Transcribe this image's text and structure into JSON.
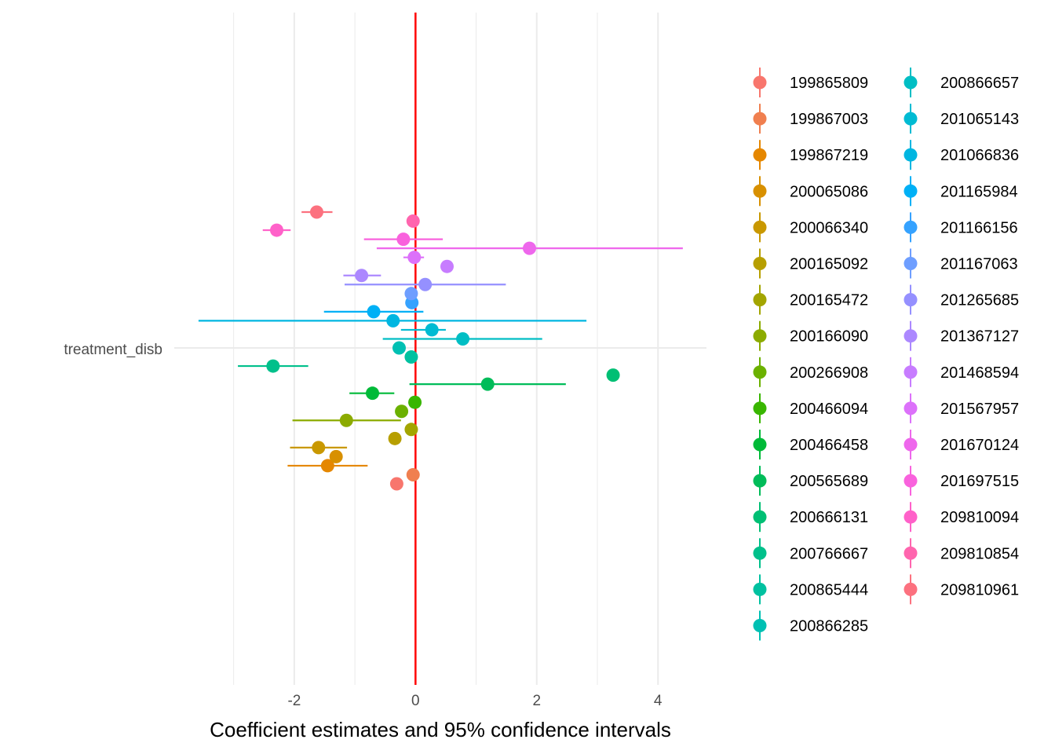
{
  "chart_data": {
    "type": "scatter",
    "subtype": "coefficient-plot-with-error-bars",
    "title": "",
    "xlabel": "Coefficient estimates and 95% confidence intervals",
    "ylabel": "",
    "y_category": "treatment_disb",
    "xlim": [
      -3.98,
      4.8
    ],
    "x_ticks": [
      -2,
      0,
      2,
      4
    ],
    "reference_line": {
      "x": 0,
      "color": "#FF0000"
    },
    "grid": true,
    "legend_position": "right",
    "series": [
      {
        "name": "199865809",
        "color": "#F8766D",
        "estimate": -0.31,
        "ci": null
      },
      {
        "name": "199867003",
        "color": "#F07F4F",
        "estimate": -0.04,
        "ci": null
      },
      {
        "name": "199867219",
        "color": "#E58700",
        "estimate": -1.45,
        "ci": [
          -2.11,
          -0.79
        ]
      },
      {
        "name": "200065086",
        "color": "#D89000",
        "estimate": -1.31,
        "ci": null
      },
      {
        "name": "200066340",
        "color": "#C99800",
        "estimate": -1.6,
        "ci": [
          -2.07,
          -1.13
        ]
      },
      {
        "name": "200165092",
        "color": "#B79F00",
        "estimate": -0.34,
        "ci": null
      },
      {
        "name": "200165472",
        "color": "#A3A500",
        "estimate": -0.07,
        "ci": null
      },
      {
        "name": "200166090",
        "color": "#8CAB00",
        "estimate": -1.14,
        "ci": [
          -2.03,
          -0.24
        ]
      },
      {
        "name": "200266908",
        "color": "#6BB100",
        "estimate": -0.23,
        "ci": null
      },
      {
        "name": "200466094",
        "color": "#39B600",
        "estimate": -0.01,
        "ci": null
      },
      {
        "name": "200466458",
        "color": "#00BA38",
        "estimate": -0.71,
        "ci": [
          -1.09,
          -0.35
        ]
      },
      {
        "name": "200565689",
        "color": "#00BC59",
        "estimate": 1.19,
        "ci": [
          -0.1,
          2.48
        ]
      },
      {
        "name": "200666131",
        "color": "#00BF74",
        "estimate": 3.26,
        "ci": null
      },
      {
        "name": "200766667",
        "color": "#00C08B",
        "estimate": -2.35,
        "ci": [
          -2.93,
          -1.77
        ]
      },
      {
        "name": "200865444",
        "color": "#00C1A0",
        "estimate": -0.07,
        "ci": null
      },
      {
        "name": "200866285",
        "color": "#00C0B3",
        "estimate": -0.27,
        "ci": null
      },
      {
        "name": "200866657",
        "color": "#00BEC4",
        "estimate": 0.78,
        "ci": [
          -0.54,
          2.09
        ]
      },
      {
        "name": "201065143",
        "color": "#00BBD3",
        "estimate": 0.27,
        "ci": [
          -0.24,
          0.5
        ]
      },
      {
        "name": "201066836",
        "color": "#00B6E1",
        "estimate": -0.37,
        "ci": [
          -3.58,
          2.82
        ]
      },
      {
        "name": "201165984",
        "color": "#00B0F6",
        "estimate": -0.69,
        "ci": [
          -1.51,
          0.13
        ]
      },
      {
        "name": "201166156",
        "color": "#35A2FF",
        "estimate": -0.06,
        "ci": null
      },
      {
        "name": "201167063",
        "color": "#6E9EFF",
        "estimate": -0.07,
        "ci": null
      },
      {
        "name": "201265685",
        "color": "#9590FF",
        "estimate": 0.16,
        "ci": [
          -1.17,
          1.49
        ]
      },
      {
        "name": "201367127",
        "color": "#AC88FF",
        "estimate": -0.89,
        "ci": [
          -1.19,
          -0.57
        ]
      },
      {
        "name": "201468594",
        "color": "#C77CFF",
        "estimate": 0.52,
        "ci": null
      },
      {
        "name": "201567957",
        "color": "#DC71FA",
        "estimate": -0.02,
        "ci": [
          -0.2,
          0.14
        ]
      },
      {
        "name": "201670124",
        "color": "#EE67EC",
        "estimate": 1.88,
        "ci": [
          -0.64,
          4.41
        ]
      },
      {
        "name": "201697515",
        "color": "#F962DD",
        "estimate": -0.2,
        "ci": [
          -0.85,
          0.45
        ]
      },
      {
        "name": "209810094",
        "color": "#FF61C9",
        "estimate": -2.29,
        "ci": [
          -2.52,
          -2.06
        ]
      },
      {
        "name": "209810854",
        "color": "#FF65AE",
        "estimate": -0.04,
        "ci": null
      },
      {
        "name": "209810961",
        "color": "#FC717F",
        "estimate": -1.63,
        "ci": [
          -1.88,
          -1.37
        ]
      }
    ]
  }
}
